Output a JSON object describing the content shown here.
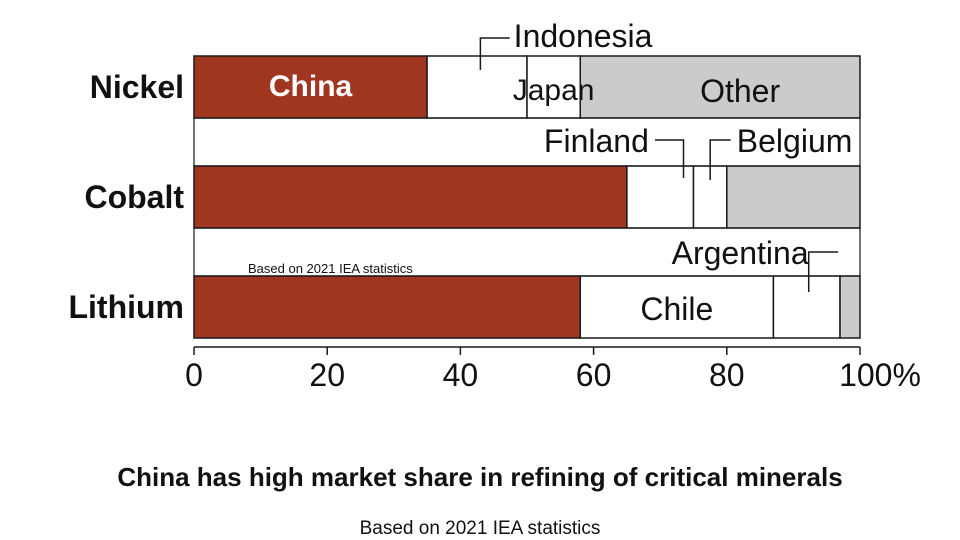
{
  "colors": {
    "china": "#a03520",
    "other": "#cbcbcd",
    "white_segment": "#ffffff",
    "stroke": "#1a1a1a",
    "text": "#111111"
  },
  "chart_data": {
    "type": "bar",
    "orientation": "horizontal",
    "stacked": true,
    "categories": [
      "Nickel",
      "Cobalt",
      "Lithium"
    ],
    "xlim": [
      0,
      100
    ],
    "xticks": [
      "0",
      "20",
      "40",
      "60",
      "80",
      "100%"
    ],
    "grid": false,
    "bars": [
      {
        "category": "Nickel",
        "segments": [
          {
            "label": "China",
            "value": 35,
            "color": "#a03520"
          },
          {
            "label": "Indonesia",
            "value": 15,
            "color": "#ffffff"
          },
          {
            "label": "Japan",
            "value": 8,
            "color": "#ffffff"
          },
          {
            "label": "Other",
            "value": 42,
            "color": "#cbcbcd"
          }
        ]
      },
      {
        "category": "Cobalt",
        "segments": [
          {
            "label": "",
            "value": 65,
            "color": "#a03520"
          },
          {
            "label": "Finland",
            "value": 10,
            "color": "#ffffff"
          },
          {
            "label": "Belgium",
            "value": 5,
            "color": "#ffffff"
          },
          {
            "label": "",
            "value": 20,
            "color": "#cbcbcd"
          }
        ]
      },
      {
        "category": "Lithium",
        "segments": [
          {
            "label": "",
            "value": 58,
            "color": "#a03520"
          },
          {
            "label": "Chile",
            "value": 29,
            "color": "#ffffff"
          },
          {
            "label": "Argentina",
            "value": 10,
            "color": "#ffffff"
          },
          {
            "label": "",
            "value": 3,
            "color": "#cbcbcd"
          }
        ]
      }
    ],
    "segment_labels": {
      "china": "China",
      "indonesia": "Indonesia",
      "japan": "Japan",
      "other": "Other",
      "finland": "Finland",
      "belgium": "Belgium",
      "argentina": "Argentina",
      "chile": "Chile"
    },
    "watermark": "Based on 2021 IEA statistics",
    "title": "China has high market share in refining of critical minerals",
    "subtitle": "Based on 2021 IEA statistics"
  }
}
